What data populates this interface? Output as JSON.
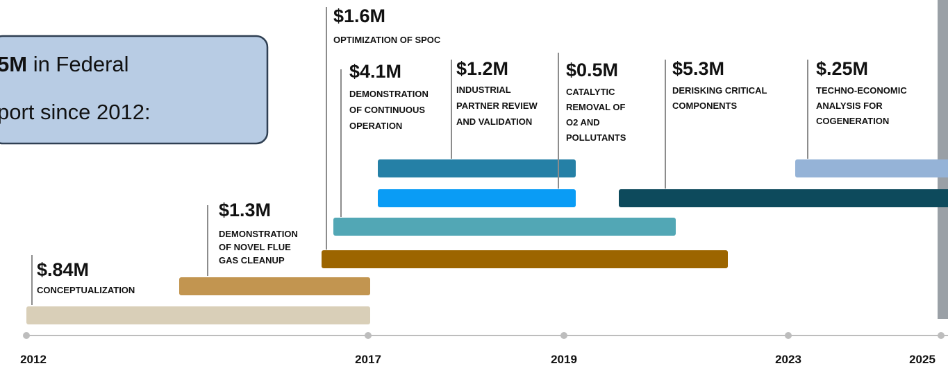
{
  "header": {
    "line1": {
      "bold": "5M",
      "text": " in Federal"
    },
    "line2": "port since 2012:"
  },
  "items": [
    {
      "amount": "$.84M",
      "lines": [
        "CONCEPTUALIZATION"
      ]
    },
    {
      "amount": "$1.3M",
      "lines": [
        "DEMONSTRATION",
        "OF NOVEL FLUE",
        "GAS CLEANUP"
      ]
    },
    {
      "amount": "$1.6M",
      "lines": [
        "OPTIMIZATION OF SPOC"
      ]
    },
    {
      "amount": "$4.1M",
      "lines": [
        "DEMONSTRATION",
        "OF CONTINUOUS",
        "OPERATION"
      ]
    },
    {
      "amount": "$1.2M",
      "lines": [
        "INDUSTRIAL",
        "PARTNER REVIEW",
        "AND VALIDATION"
      ]
    },
    {
      "amount": "$0.5M",
      "lines": [
        "CATALYTIC",
        "REMOVAL OF",
        "O2 AND",
        "POLLUTANTS"
      ]
    },
    {
      "amount": "$5.3M",
      "lines": [
        "DERISKING CRITICAL",
        "COMPONENTS"
      ]
    },
    {
      "amount": "$.25M",
      "lines": [
        "TECHNO-ECONOMIC",
        "ANALYSIS FOR",
        "COGENERATION"
      ]
    }
  ],
  "years": [
    "2012",
    "2017",
    "2019",
    "2023",
    "2025"
  ]
}
